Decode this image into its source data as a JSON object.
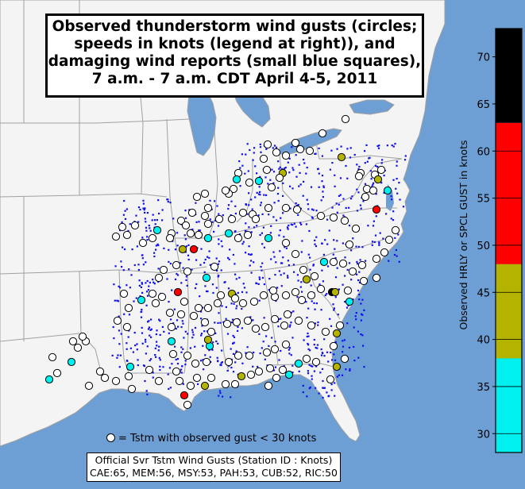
{
  "title": {
    "line1": "Observed thunderstorm wind gusts (circles;",
    "line2": "speeds in knots (legend at right)), and",
    "line3": "damaging wind reports (small blue squares),",
    "line4": "7 a.m. - 7 a.m. CDT April 4-5, 2011"
  },
  "colors": {
    "water": "#6e9fd4",
    "land": "#f4f4f4",
    "border": "#a0a0a0",
    "report_dot": "#1010ee",
    "white_circle": "#ffffff",
    "cyan": "#00f0f0",
    "olive": "#b4b400",
    "red": "#ff0000",
    "black": "#000000"
  },
  "legend": {
    "axis_label": "Observed HRLY or SPCL GUST in knots",
    "ticks": [
      "30",
      "35",
      "40",
      "45",
      "50",
      "55",
      "60",
      "65",
      "70"
    ],
    "bands": [
      {
        "from": 28,
        "to": 38,
        "color": "#00f0f0"
      },
      {
        "from": 38,
        "to": 48,
        "color": "#b4b400"
      },
      {
        "from": 48,
        "to": 63,
        "color": "#ff0000"
      },
      {
        "from": 63,
        "to": 73,
        "color": "#000000"
      }
    ],
    "range": [
      28,
      73
    ]
  },
  "white_note": "= Tstm with observed gust < 30 knots",
  "official": {
    "line1": "Official Svr Tstm Wind Gusts (Station ID : Knots)",
    "line2": "CAE:65, MEM:56, MSY:53, PAH:53, CUB:52, RIC:50"
  }
}
